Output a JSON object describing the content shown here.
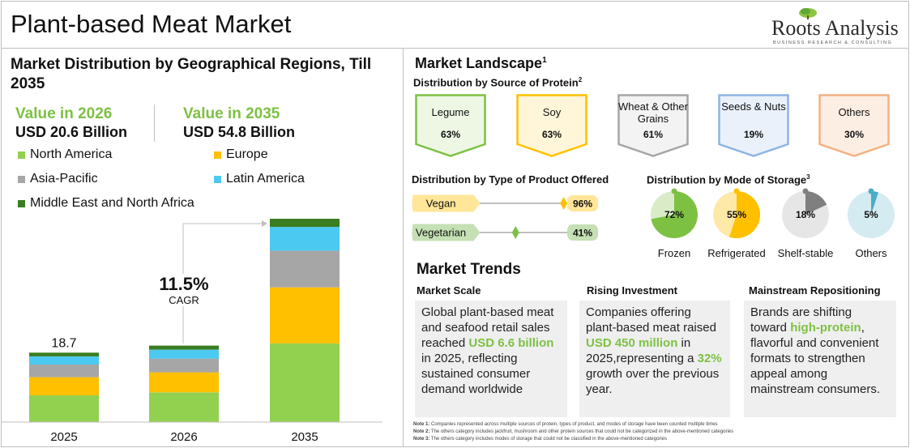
{
  "header": {
    "title": "Plant-based Meat Market",
    "logo_name": "Roots Analysis",
    "logo_tagline": "BUSINESS RESEARCH & CONSULTING"
  },
  "left": {
    "title": "Market Distribution by Geographical Regions, Till 2035",
    "value_2026_label": "Value in 2026",
    "value_2026": "USD 20.6 Billion",
    "value_2035_label": "Value in 2035",
    "value_2035": "USD 54.8 Billion",
    "legend": [
      {
        "label": "North America",
        "color": "#92d050"
      },
      {
        "label": "Europe",
        "color": "#ffc000"
      },
      {
        "label": "Asia-Pacific",
        "color": "#a6a6a6"
      },
      {
        "label": "Latin America",
        "color": "#4cc9f0"
      },
      {
        "label": "Middle East and North Africa",
        "color": "#3a7d22"
      }
    ],
    "cagr_value": "11.5%",
    "cagr_label": "CAGR"
  },
  "chart_data": {
    "type": "bar",
    "stacked": true,
    "categories": [
      "2025",
      "2026",
      "2035"
    ],
    "totals": [
      18.7,
      20.6,
      54.8
    ],
    "data_labels": [
      "18.7",
      "",
      ""
    ],
    "series": [
      {
        "name": "North America",
        "color": "#92d050",
        "values": [
          7.2,
          8.0,
          21.2
        ]
      },
      {
        "name": "Europe",
        "color": "#ffc000",
        "values": [
          4.9,
          5.4,
          15.1
        ]
      },
      {
        "name": "Asia-Pacific",
        "color": "#a6a6a6",
        "values": [
          3.4,
          3.7,
          9.9
        ]
      },
      {
        "name": "Latin America",
        "color": "#4cc9f0",
        "values": [
          2.2,
          2.4,
          6.4
        ]
      },
      {
        "name": "Middle East and North Africa",
        "color": "#3a7d22",
        "values": [
          1.0,
          1.1,
          2.2
        ]
      }
    ]
  },
  "landscape": {
    "title": "Market Landscape",
    "title_sup": "1",
    "protein_title": "Distribution by Source of Protein",
    "protein_sup": "2",
    "protein_cards": [
      {
        "name": "Legume",
        "value": "63%",
        "border": "#7dc143",
        "fill": "#eef7e4"
      },
      {
        "name": "Soy",
        "value": "63%",
        "border": "#ffc000",
        "fill": "#fff6d9"
      },
      {
        "name": "Wheat & Other Grains",
        "value": "61%",
        "border": "#a6a6a6",
        "fill": "#f3f3f3"
      },
      {
        "name": "Seeds & Nuts",
        "value": "19%",
        "border": "#8fb4e3",
        "fill": "#eaf1fb"
      },
      {
        "name": "Others",
        "value": "30%",
        "border": "#f4b183",
        "fill": "#fdeee4"
      }
    ],
    "product_title": "Distribution by Type of Product Offered",
    "products": [
      {
        "name": "Vegan",
        "value": "96%",
        "fraction": 0.96,
        "color": "#ffc000",
        "fill": "#ffe699"
      },
      {
        "name": "Vegetarian",
        "value": "41%",
        "fraction": 0.41,
        "color": "#7dc143",
        "fill": "#c5e0b4"
      }
    ],
    "storage_title": "Distribution by Mode of Storage",
    "storage_sup": "3",
    "storage": [
      {
        "name": "Frozen",
        "value": "72%",
        "fraction": 0.72,
        "color": "#7dc143",
        "bg": "#d9ecc7"
      },
      {
        "name": "Refrigerated",
        "value": "55%",
        "fraction": 0.55,
        "color": "#ffc000",
        "bg": "#ffe9a8"
      },
      {
        "name": "Shelf-stable",
        "value": "18%",
        "fraction": 0.18,
        "color": "#7f7f7f",
        "bg": "#e6e6e6"
      },
      {
        "name": "Others",
        "value": "5%",
        "fraction": 0.05,
        "color": "#4bacc6",
        "bg": "#d5ebf2"
      }
    ]
  },
  "trends": {
    "title": "Market Trends",
    "items": [
      {
        "heading": "Market Scale",
        "pre": "Global plant-based meat and seafood retail sales reached ",
        "hl1": "USD 6.6 billion",
        "mid": " in 2025, reflecting sustained consumer demand worldwide",
        "hl2": "",
        "post": ""
      },
      {
        "heading": "Rising Investment",
        "pre": "Companies offering plant-based meat raised ",
        "hl1": "USD 450 million",
        "mid": " in 2025,representing a ",
        "hl2": "32%",
        "post": " growth over the previous year."
      },
      {
        "heading": "Mainstream Repositioning",
        "pre": "Brands are shifting toward ",
        "hl1": "high-protein",
        "mid": ", flavorful and convenient formats to strengthen appeal among mainstream consumers.",
        "hl2": "",
        "post": ""
      }
    ]
  },
  "notes": [
    {
      "label": "Note 1:",
      "text": " Companies represented across multiple sources of protein, types of product, and modes of storage have been counted multiple times"
    },
    {
      "label": "Note 2:",
      "text": " The others category includes jackfruit, mushroom and other protein sources that could not be categorized in the above-mentioned categories"
    },
    {
      "label": "Note 3:",
      "text": " The others category includes modes of storage that could not be classified in the above-mentioned categories"
    }
  ]
}
